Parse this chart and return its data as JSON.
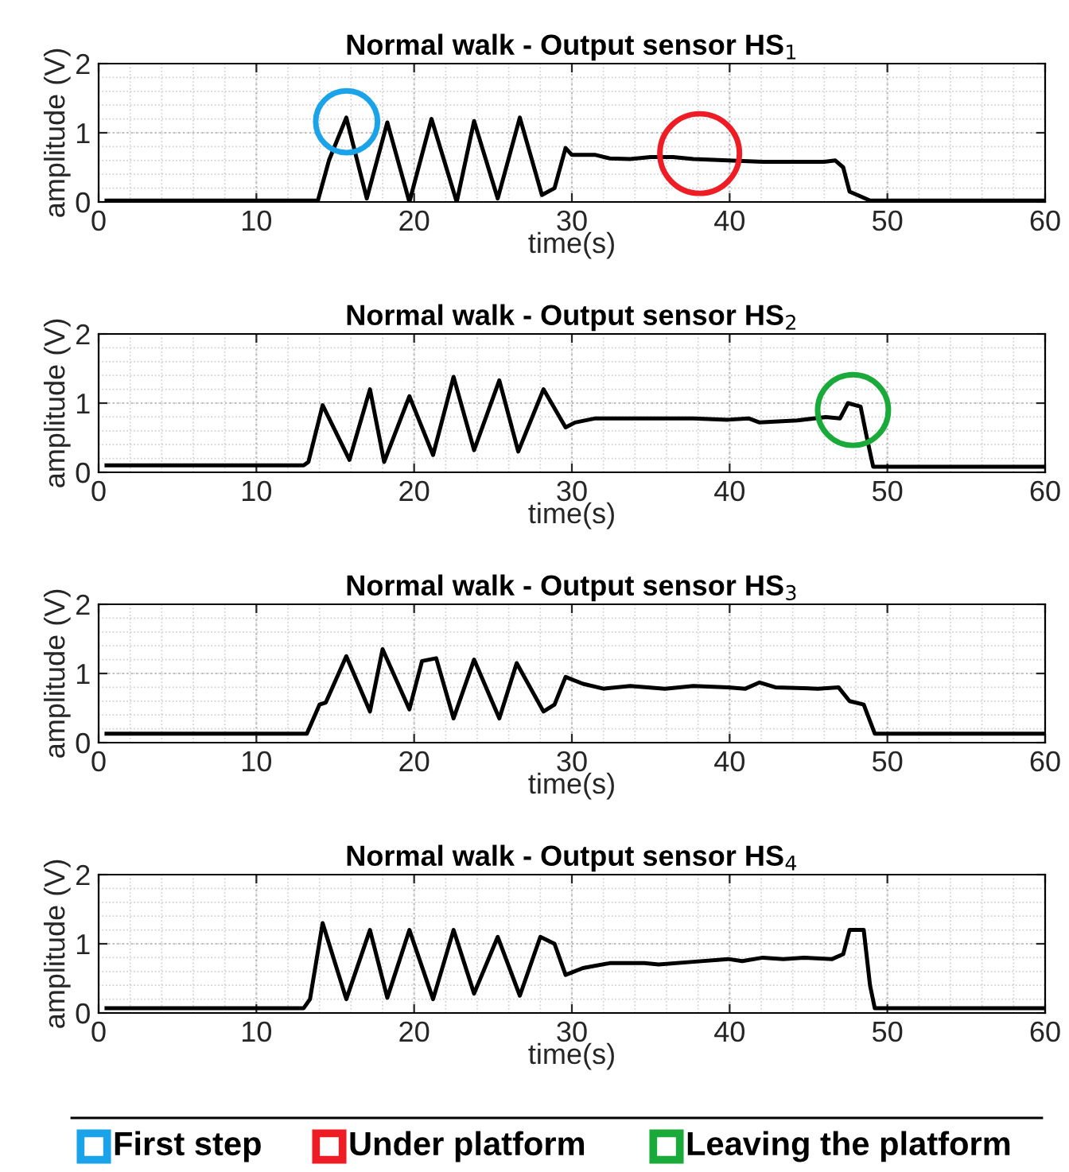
{
  "chart_data": [
    {
      "type": "line",
      "title": "Normal walk - Output sensor HS$_{1}$",
      "xlabel": "time(s)",
      "ylabel": "amplitude (V)",
      "xlim": [
        0,
        60
      ],
      "xticks": [
        0,
        10,
        20,
        30,
        40,
        50,
        60
      ],
      "ylim": [
        0,
        2
      ],
      "yticks": [
        0,
        1,
        2
      ],
      "grid": true,
      "legend": false,
      "series": [
        {
          "color": "#000000",
          "x": [
            0.5,
            13.9,
            14.6,
            15.7,
            17.0,
            18.3,
            19.7,
            21.1,
            22.7,
            23.8,
            25.3,
            26.7,
            28.1,
            28.9,
            29.6,
            30.0,
            31.5,
            32.4,
            33.7,
            35.0,
            36.4,
            37.7,
            39.9,
            42.1,
            46.0,
            46.7,
            47.2,
            47.6,
            48.3,
            48.9,
            60
          ],
          "values": [
            0.02,
            0.02,
            0.6,
            1.22,
            0.05,
            1.15,
            0.0,
            1.2,
            0.0,
            1.17,
            0.05,
            1.22,
            0.1,
            0.2,
            0.78,
            0.68,
            0.68,
            0.63,
            0.62,
            0.65,
            0.65,
            0.62,
            0.6,
            0.58,
            0.58,
            0.6,
            0.5,
            0.15,
            0.08,
            0.02,
            0.02
          ]
        }
      ]
    },
    {
      "type": "line",
      "title": "Normal walk - Output sensor HS$_{2}$",
      "xlabel": "time(s)",
      "ylabel": "amplitude (V)",
      "xlim": [
        0,
        60
      ],
      "xticks": [
        0,
        10,
        20,
        30,
        40,
        50,
        60
      ],
      "ylim": [
        0,
        2
      ],
      "yticks": [
        0,
        1,
        2
      ],
      "grid": true,
      "legend": false,
      "series": [
        {
          "color": "#000000",
          "x": [
            0.5,
            13.0,
            13.3,
            14.2,
            15.9,
            17.2,
            18.1,
            19.7,
            21.2,
            22.5,
            23.8,
            25.4,
            26.6,
            28.2,
            29.6,
            30.2,
            31.5,
            37.7,
            39.9,
            41.2,
            41.9,
            44.3,
            46.1,
            47.0,
            47.5,
            48.3,
            48.7,
            49.1,
            60
          ],
          "values": [
            0.1,
            0.1,
            0.15,
            0.97,
            0.18,
            1.2,
            0.15,
            1.1,
            0.25,
            1.38,
            0.32,
            1.33,
            0.3,
            1.2,
            0.65,
            0.72,
            0.78,
            0.78,
            0.76,
            0.78,
            0.72,
            0.75,
            0.8,
            0.78,
            1.0,
            0.95,
            0.5,
            0.08,
            0.08
          ]
        }
      ]
    },
    {
      "type": "line",
      "title": "Normal walk - Output sensor HS$_{3}$",
      "xlabel": "time(s)",
      "ylabel": "amplitude (V)",
      "xlim": [
        0,
        60
      ],
      "xticks": [
        0,
        10,
        20,
        30,
        40,
        50,
        60
      ],
      "ylim": [
        0,
        2
      ],
      "yticks": [
        0,
        1,
        2
      ],
      "grid": true,
      "legend": false,
      "series": [
        {
          "color": "#000000",
          "x": [
            0.5,
            13.2,
            14.0,
            14.4,
            15.7,
            17.2,
            18.0,
            19.7,
            20.5,
            21.4,
            22.5,
            23.8,
            25.4,
            26.5,
            28.2,
            28.9,
            29.6,
            30.7,
            32.0,
            33.7,
            35.9,
            37.7,
            39.9,
            41.0,
            41.9,
            42.9,
            45.6,
            46.9,
            47.6,
            48.5,
            49.2,
            60
          ],
          "values": [
            0.13,
            0.13,
            0.55,
            0.58,
            1.25,
            0.45,
            1.35,
            0.48,
            1.18,
            1.22,
            0.35,
            1.2,
            0.35,
            1.15,
            0.45,
            0.55,
            0.95,
            0.85,
            0.78,
            0.82,
            0.78,
            0.82,
            0.8,
            0.78,
            0.87,
            0.8,
            0.78,
            0.8,
            0.6,
            0.55,
            0.13,
            0.13
          ]
        }
      ]
    },
    {
      "type": "line",
      "title": "Normal walk - Output sensor HS$_{4}$",
      "xlabel": "time(s)",
      "ylabel": "amplitude (V)",
      "xlim": [
        0,
        60
      ],
      "xticks": [
        0,
        10,
        20,
        30,
        40,
        50,
        60
      ],
      "ylim": [
        0,
        2
      ],
      "yticks": [
        0,
        1,
        2
      ],
      "grid": true,
      "annotations": [
        "First step",
        "Under platform",
        "Leaving the platform"
      ],
      "series": [
        {
          "color": "#000000",
          "x": [
            0.5,
            13.0,
            13.4,
            14.2,
            15.7,
            17.2,
            18.3,
            19.7,
            21.2,
            22.5,
            23.8,
            25.3,
            26.7,
            28.0,
            28.9,
            29.6,
            30.7,
            32.4,
            34.6,
            35.5,
            37.7,
            39.9,
            40.8,
            42.1,
            43.4,
            44.7,
            46.5,
            47.2,
            47.6,
            48.5,
            48.9,
            49.2,
            60
          ],
          "values": [
            0.07,
            0.07,
            0.2,
            1.3,
            0.2,
            1.2,
            0.22,
            1.2,
            0.2,
            1.2,
            0.28,
            1.1,
            0.25,
            1.1,
            1.0,
            0.55,
            0.65,
            0.72,
            0.72,
            0.7,
            0.74,
            0.78,
            0.75,
            0.8,
            0.78,
            0.8,
            0.78,
            0.85,
            1.2,
            1.2,
            0.4,
            0.07,
            0.07
          ]
        }
      ]
    }
  ]
}
